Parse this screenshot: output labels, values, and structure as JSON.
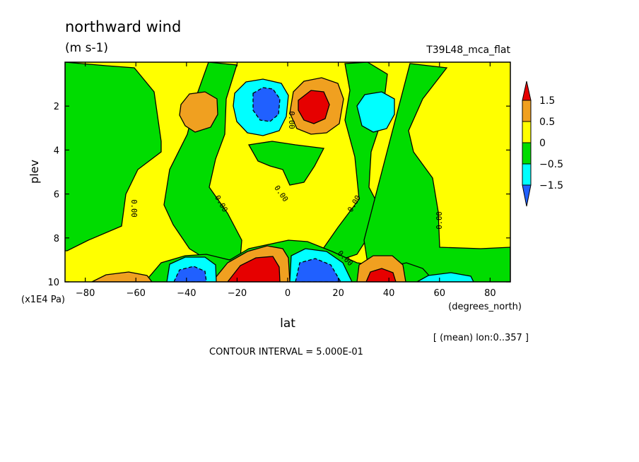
{
  "chart_data": {
    "type": "contour",
    "title": "northward wind",
    "units": "(m s-1)",
    "dataset": "T39L48_mca_flat",
    "xlabel": "lat",
    "xunits": "(degrees_north)",
    "ylabel": "plev",
    "yunits": "(x1E4 Pa)",
    "xlim": [
      -88,
      88
    ],
    "ylim": [
      0,
      10
    ],
    "y_reversed": true,
    "x_ticks": [
      "−80",
      "−60",
      "−40",
      "−20",
      "0",
      "20",
      "40",
      "60",
      "80"
    ],
    "y_ticks": [
      "2",
      "4",
      "6",
      "8",
      "10"
    ],
    "colorbar": {
      "labels": [
        "1.5",
        "0.5",
        "0",
        "−0.5",
        "−1.5"
      ],
      "colors": [
        "#e60000",
        "#f0a020",
        "#ffff00",
        "#00dc00",
        "#00ffff",
        "#2060ff"
      ]
    },
    "contour_labels": [
      "0.00"
    ],
    "contour_interval": "CONTOUR INTERVAL = 5.000E-01",
    "note": "[ (mean) lon:0..357 ]",
    "features": [
      {
        "lat": -10,
        "plev": 2.0,
        "value": -1.5
      },
      {
        "lat": 10,
        "plev": 2.0,
        "value": 1.5
      },
      {
        "lat": -40,
        "plev": 2.2,
        "value": 0.5
      },
      {
        "lat": 38,
        "plev": 2.2,
        "value": -0.5
      },
      {
        "lat": -10,
        "plev": 9.3,
        "value": 1.5
      },
      {
        "lat": 10,
        "plev": 9.3,
        "value": -1.5
      },
      {
        "lat": -38,
        "plev": 9.6,
        "value": -1.5
      },
      {
        "lat": 37,
        "plev": 9.6,
        "value": 1.5
      },
      {
        "lat": -62,
        "plev": 9.8,
        "value": 0.5
      },
      {
        "lat": 64,
        "plev": 9.8,
        "value": -0.5
      }
    ]
  }
}
